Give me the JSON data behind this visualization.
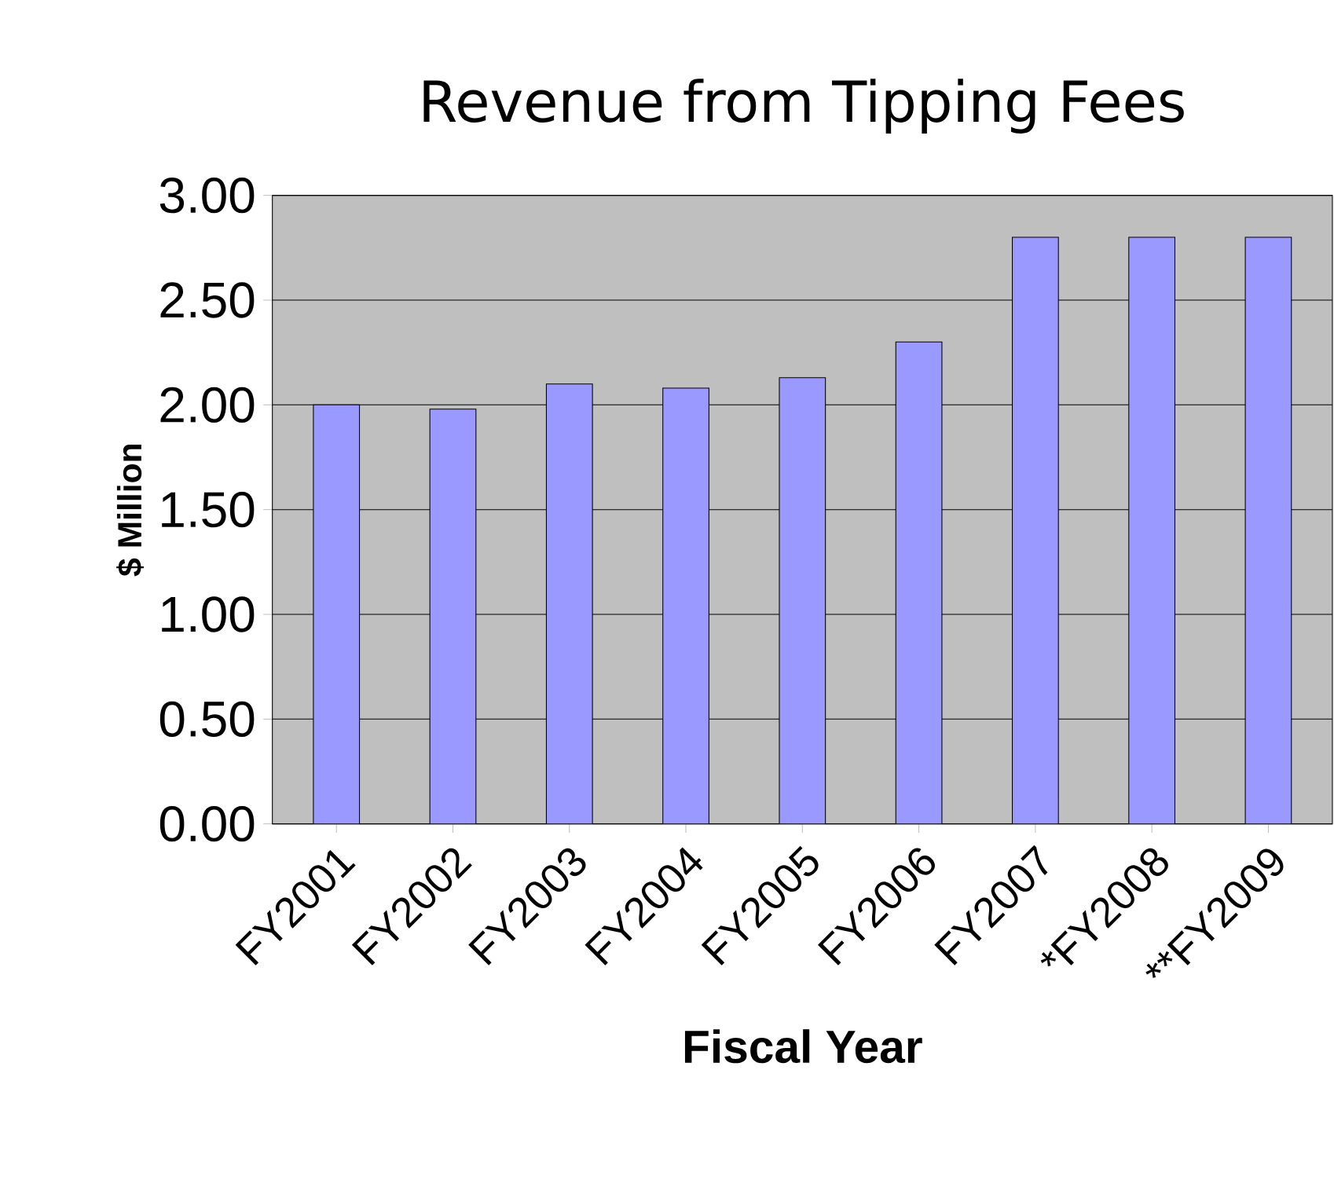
{
  "chart_data": {
    "type": "bar",
    "title": "Revenue from Tipping Fees",
    "xlabel": "Fiscal Year",
    "ylabel": "$ Million",
    "categories": [
      "FY2001",
      "FY2002",
      "FY2003",
      "FY2004",
      "FY2005",
      "FY2006",
      "FY2007",
      "*FY2008",
      "**FY2009"
    ],
    "values": [
      2.0,
      1.98,
      2.1,
      2.08,
      2.13,
      2.3,
      2.8,
      2.8,
      2.8
    ],
    "color": "#9999ff",
    "ylim": [
      0,
      3
    ],
    "yticks": [
      {
        "value": 0,
        "label": "0.00"
      },
      {
        "value": 0.5,
        "label": "0.50"
      },
      {
        "value": 1,
        "label": "1.00"
      },
      {
        "value": 1.5,
        "label": "1.50"
      },
      {
        "value": 2,
        "label": "2.00"
      },
      {
        "value": 2.5,
        "label": "2.50"
      },
      {
        "value": 3,
        "label": "3.00"
      }
    ],
    "grid": "y"
  }
}
